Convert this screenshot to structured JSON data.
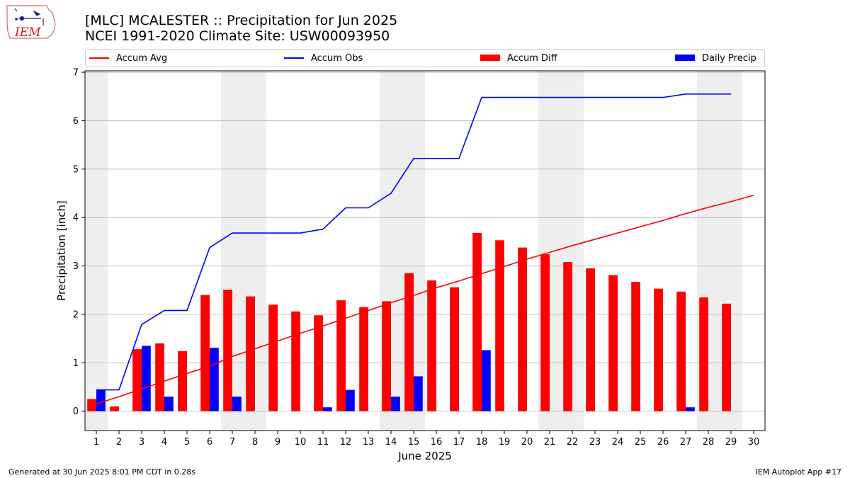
{
  "logo": {
    "text": "IEM"
  },
  "header": {
    "title": "[MLC] MCALESTER :: Precipitation for Jun 2025",
    "subtitle": "NCEI 1991-2020 Climate Site: USW00093950"
  },
  "footer": {
    "left": "Generated at 30 Jun 2025 8:01 PM CDT in 0.28s",
    "right": "IEM Autoplot App #17"
  },
  "colors": {
    "accum_avg": "#ff0000",
    "accum_obs": "#0000ff",
    "accum_diff": "#ff0000",
    "daily_precip": "#0000ff",
    "weekend_shade": "#eeeeee",
    "grid": "#b0b0b0"
  },
  "chart_data": {
    "type": "bar",
    "xlabel": "June 2025",
    "ylabel": "Precipitation [inch]",
    "xlim": [
      0.5,
      30.5
    ],
    "ylim": [
      -0.4,
      7.03
    ],
    "yticks": [
      0,
      1,
      2,
      3,
      4,
      5,
      6,
      7
    ],
    "grid": "y",
    "legend": "top, horizontal",
    "days": [
      1,
      2,
      3,
      4,
      5,
      6,
      7,
      8,
      9,
      10,
      11,
      12,
      13,
      14,
      15,
      16,
      17,
      18,
      19,
      20,
      21,
      22,
      23,
      24,
      25,
      26,
      27,
      28,
      29,
      30
    ],
    "weekend_days": [
      1,
      7,
      8,
      14,
      15,
      21,
      22,
      28,
      29
    ],
    "series": [
      {
        "name": "Accum Avg",
        "kind": "line",
        "values": [
          0.15,
          0.3,
          0.46,
          0.62,
          0.78,
          0.93,
          1.13,
          1.29,
          1.45,
          1.61,
          1.76,
          1.92,
          2.08,
          2.24,
          2.39,
          2.55,
          2.69,
          2.84,
          2.99,
          3.14,
          3.28,
          3.42,
          3.55,
          3.68,
          3.81,
          3.94,
          4.08,
          4.21,
          4.33,
          4.46
        ]
      },
      {
        "name": "Accum Obs",
        "kind": "line",
        "values": [
          0.44,
          0.44,
          1.79,
          2.08,
          2.08,
          3.38,
          3.68,
          3.68,
          3.68,
          3.68,
          3.76,
          4.2,
          4.2,
          4.5,
          5.22,
          5.22,
          5.22,
          6.48,
          6.48,
          6.48,
          6.48,
          6.48,
          6.48,
          6.48,
          6.48,
          6.48,
          6.55,
          6.55,
          6.55
        ]
      },
      {
        "name": "Accum Diff",
        "kind": "bar",
        "values": [
          0.25,
          0.1,
          1.28,
          1.4,
          1.24,
          2.4,
          2.51,
          2.37,
          2.2,
          2.06,
          1.98,
          2.29,
          2.15,
          2.27,
          2.85,
          2.7,
          2.56,
          3.68,
          3.53,
          3.38,
          3.24,
          3.08,
          2.95,
          2.81,
          2.67,
          2.53,
          2.47,
          2.35,
          2.22
        ]
      },
      {
        "name": "Daily Precip",
        "kind": "bar",
        "values": [
          0.44,
          0,
          1.35,
          0.3,
          0,
          1.31,
          0.3,
          0,
          0,
          0,
          0.08,
          0.44,
          0,
          0.3,
          0.72,
          0,
          0,
          1.26,
          0,
          0,
          0,
          0,
          0,
          0,
          0,
          0,
          0.08,
          0,
          0
        ]
      }
    ]
  }
}
